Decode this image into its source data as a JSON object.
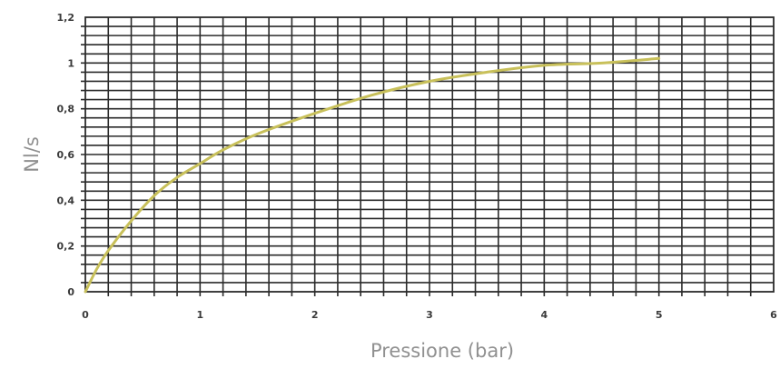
{
  "chart_data": {
    "type": "line",
    "title": "",
    "xlabel": "Pressione (bar)",
    "ylabel": "Nl/s",
    "xlim": [
      0,
      6
    ],
    "ylim": [
      0,
      1.2
    ],
    "x_ticks": [
      "0",
      "1",
      "2",
      "3",
      "4",
      "5",
      "6"
    ],
    "y_ticks": [
      "0",
      "0,2",
      "0,4",
      "0,6",
      "0,8",
      "1",
      "1,2"
    ],
    "grid": true,
    "series": [
      {
        "color": "#c8c05a",
        "x": [
          0,
          0.1,
          0.2,
          0.4,
          0.6,
          0.8,
          1.0,
          1.2,
          1.5,
          2.0,
          2.5,
          3.0,
          3.5,
          4.0,
          4.5,
          5.0
        ],
        "y": [
          0,
          0.1,
          0.18,
          0.31,
          0.42,
          0.5,
          0.56,
          0.62,
          0.69,
          0.78,
          0.86,
          0.92,
          0.96,
          0.99,
          1.0,
          1.02
        ]
      }
    ]
  }
}
